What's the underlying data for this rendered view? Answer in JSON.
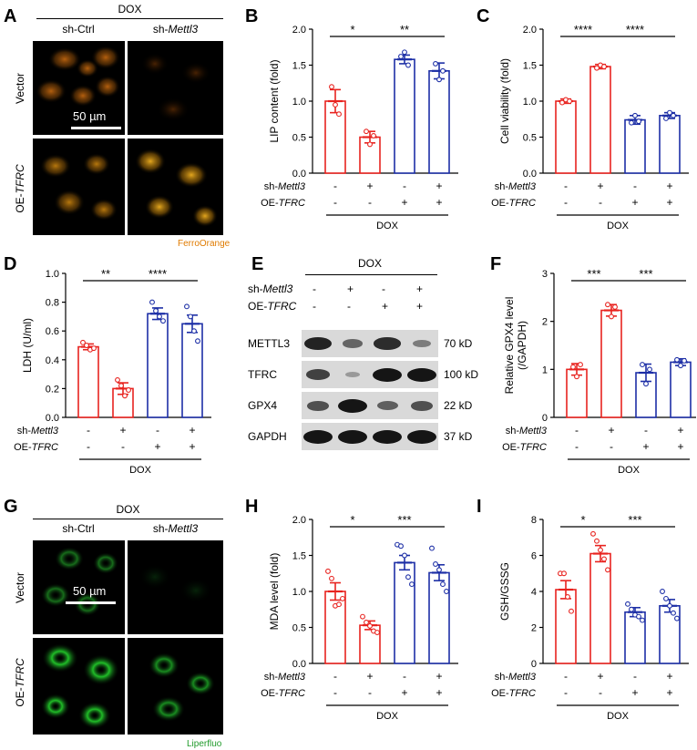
{
  "panel_letters": [
    "A",
    "B",
    "C",
    "D",
    "E",
    "F",
    "G",
    "H",
    "I"
  ],
  "fig_a": {
    "letter": "A",
    "dox_label": "DOX",
    "col_labels": [
      "sh-Ctrl",
      "sh-Mettl3"
    ],
    "row_labels": [
      "Vector",
      "OE-TFRC"
    ],
    "scale_label": "50 µm",
    "stain_label": "FerroOrange",
    "stain_color": "#e07b00"
  },
  "fig_g": {
    "letter": "G",
    "dox_label": "DOX",
    "col_labels": [
      "sh-Ctrl",
      "sh-Mettl3"
    ],
    "row_labels": [
      "Vector",
      "OE-TFRC"
    ],
    "scale_label": "50 µm",
    "stain_label": "Liperfluo",
    "stain_color": "#1f9a2a"
  },
  "fig_e": {
    "letter": "E",
    "dox_label": "DOX",
    "cond_labels": [
      "sh-Mettl3",
      "OE-TFRC"
    ],
    "sh_mettl3": [
      "-",
      "+",
      "-",
      "+"
    ],
    "oe_tfrc": [
      "-",
      "-",
      "+",
      "+"
    ],
    "bands": [
      {
        "protein": "METTL3",
        "size": "70 kD",
        "intensity": [
          0.9,
          0.45,
          0.85,
          0.3
        ]
      },
      {
        "protein": "TFRC",
        "size": "100 kD",
        "intensity": [
          0.7,
          0.1,
          1.0,
          1.0
        ]
      },
      {
        "protein": "GPX4",
        "size": "22 kD",
        "intensity": [
          0.6,
          1.0,
          0.5,
          0.6
        ]
      },
      {
        "protein": "GAPDH",
        "size": "37 kD",
        "intensity": [
          1.0,
          1.0,
          1.0,
          1.0
        ]
      }
    ]
  },
  "chart_data": [
    {
      "panel": "B",
      "type": "bar",
      "ylabel": "LIP content (fold)",
      "ylim": [
        0,
        2.0
      ],
      "yticks": [
        "0.0",
        "0.5",
        "1.0",
        "1.5",
        "2.0"
      ],
      "sh_mettl3": [
        "-",
        "+",
        "-",
        "+"
      ],
      "oe_tfrc": [
        "-",
        "-",
        "+",
        "+"
      ],
      "xgroup": "DOX",
      "values": [
        1.0,
        0.5,
        1.58,
        1.42
      ],
      "errors": [
        0.16,
        0.08,
        0.06,
        0.11
      ],
      "colors": [
        "#e8231f",
        "#e8231f",
        "#1d2fa6",
        "#1d2fa6"
      ],
      "points": [
        [
          1.2,
          0.95,
          0.82
        ],
        [
          0.58,
          0.4,
          0.52
        ],
        [
          1.62,
          1.68,
          1.5
        ],
        [
          1.52,
          1.3,
          1.42
        ]
      ],
      "sig": [
        {
          "from": 0,
          "to": 1,
          "label": "*"
        },
        {
          "from": 1,
          "to": 3,
          "label": "**"
        }
      ]
    },
    {
      "panel": "C",
      "type": "bar",
      "ylabel": "Cell viability (fold)",
      "ylim": [
        0,
        2.0
      ],
      "yticks": [
        "0.0",
        "0.5",
        "1.0",
        "1.5",
        "2.0"
      ],
      "sh_mettl3": [
        "-",
        "+",
        "-",
        "+"
      ],
      "oe_tfrc": [
        "-",
        "-",
        "+",
        "+"
      ],
      "xgroup": "DOX",
      "values": [
        1.0,
        1.48,
        0.74,
        0.8
      ],
      "errors": [
        0.03,
        0.03,
        0.06,
        0.04
      ],
      "colors": [
        "#e8231f",
        "#e8231f",
        "#1d2fa6",
        "#1d2fa6"
      ],
      "points": [
        [
          0.98,
          1.02,
          1.0
        ],
        [
          1.46,
          1.5,
          1.48
        ],
        [
          0.7,
          0.8,
          0.72
        ],
        [
          0.76,
          0.84,
          0.8
        ]
      ],
      "sig": [
        {
          "from": 0,
          "to": 1,
          "label": "****"
        },
        {
          "from": 1,
          "to": 3,
          "label": "****"
        }
      ]
    },
    {
      "panel": "D",
      "type": "bar",
      "ylabel": "LDH (U/ml)",
      "ylim": [
        0,
        1.0
      ],
      "yticks": [
        "0.0",
        "0.2",
        "0.4",
        "0.6",
        "0.8",
        "1.0"
      ],
      "sh_mettl3": [
        "-",
        "+",
        "-",
        "+"
      ],
      "oe_tfrc": [
        "-",
        "-",
        "+",
        "+"
      ],
      "xgroup": "DOX",
      "values": [
        0.49,
        0.2,
        0.72,
        0.65
      ],
      "errors": [
        0.02,
        0.04,
        0.04,
        0.06
      ],
      "colors": [
        "#e8231f",
        "#e8231f",
        "#1d2fa6",
        "#1d2fa6"
      ],
      "points": [
        [
          0.52,
          0.5,
          0.47,
          0.48
        ],
        [
          0.26,
          0.22,
          0.15,
          0.19
        ],
        [
          0.8,
          0.74,
          0.7,
          0.67
        ],
        [
          0.77,
          0.7,
          0.6,
          0.53
        ]
      ],
      "sig": [
        {
          "from": 0,
          "to": 1,
          "label": "**"
        },
        {
          "from": 1,
          "to": 3,
          "label": "****"
        }
      ]
    },
    {
      "panel": "F",
      "type": "bar",
      "ylabel": "Relative GPX4 level\n(/GAPDH)",
      "ylim": [
        0,
        3
      ],
      "yticks": [
        "0",
        "1",
        "2",
        "3"
      ],
      "sh_mettl3": [
        "-",
        "+",
        "-",
        "+"
      ],
      "oe_tfrc": [
        "-",
        "-",
        "+",
        "+"
      ],
      "xgroup": "DOX",
      "values": [
        1.0,
        2.23,
        0.93,
        1.15
      ],
      "errors": [
        0.12,
        0.12,
        0.18,
        0.07
      ],
      "colors": [
        "#e8231f",
        "#e8231f",
        "#1d2fa6",
        "#1d2fa6"
      ],
      "points": [
        [
          1.05,
          0.85,
          1.1
        ],
        [
          2.35,
          2.1,
          2.3
        ],
        [
          1.1,
          0.7,
          1.0
        ],
        [
          1.2,
          1.08,
          1.18
        ]
      ],
      "sig": [
        {
          "from": 0,
          "to": 1,
          "label": "***"
        },
        {
          "from": 1,
          "to": 3,
          "label": "***"
        }
      ]
    },
    {
      "panel": "H",
      "type": "bar",
      "ylabel": "MDA level (fold)",
      "ylim": [
        0,
        2.0
      ],
      "yticks": [
        "0.0",
        "0.5",
        "1.0",
        "1.5",
        "2.0"
      ],
      "sh_mettl3": [
        "-",
        "+",
        "-",
        "+"
      ],
      "oe_tfrc": [
        "-",
        "-",
        "+",
        "+"
      ],
      "xgroup": "DOX",
      "values": [
        1.0,
        0.53,
        1.4,
        1.26
      ],
      "errors": [
        0.12,
        0.06,
        0.1,
        0.11
      ],
      "colors": [
        "#e8231f",
        "#e8231f",
        "#1d2fa6",
        "#1d2fa6"
      ],
      "points": [
        [
          1.28,
          1.18,
          0.8,
          0.82,
          0.9
        ],
        [
          0.65,
          0.57,
          0.52,
          0.45,
          0.43
        ],
        [
          1.65,
          1.63,
          1.5,
          1.2,
          1.1
        ],
        [
          1.6,
          1.38,
          1.3,
          1.1,
          1.0
        ]
      ],
      "sig": [
        {
          "from": 0,
          "to": 1,
          "label": "*"
        },
        {
          "from": 1,
          "to": 3,
          "label": "***"
        }
      ]
    },
    {
      "panel": "I",
      "type": "bar",
      "ylabel": "GSH/GSSG",
      "ylim": [
        0,
        8
      ],
      "yticks": [
        "0",
        "2",
        "4",
        "6",
        "8"
      ],
      "sh_mettl3": [
        "-",
        "+",
        "-",
        "+"
      ],
      "oe_tfrc": [
        "-",
        "-",
        "+",
        "+"
      ],
      "xgroup": "DOX",
      "values": [
        4.1,
        6.1,
        2.85,
        3.2
      ],
      "errors": [
        0.5,
        0.45,
        0.25,
        0.35
      ],
      "colors": [
        "#e8231f",
        "#e8231f",
        "#1d2fa6",
        "#1d2fa6"
      ],
      "points": [
        [
          5.0,
          5.0,
          3.7,
          2.9
        ],
        [
          7.2,
          6.8,
          6.3,
          5.8,
          5.2
        ],
        [
          3.3,
          3.0,
          2.7,
          2.6,
          2.4
        ],
        [
          4.0,
          3.6,
          3.2,
          2.8,
          2.5
        ]
      ],
      "sig": [
        {
          "from": 0,
          "to": 1,
          "label": "*"
        },
        {
          "from": 1,
          "to": 3,
          "label": "***"
        }
      ]
    }
  ]
}
